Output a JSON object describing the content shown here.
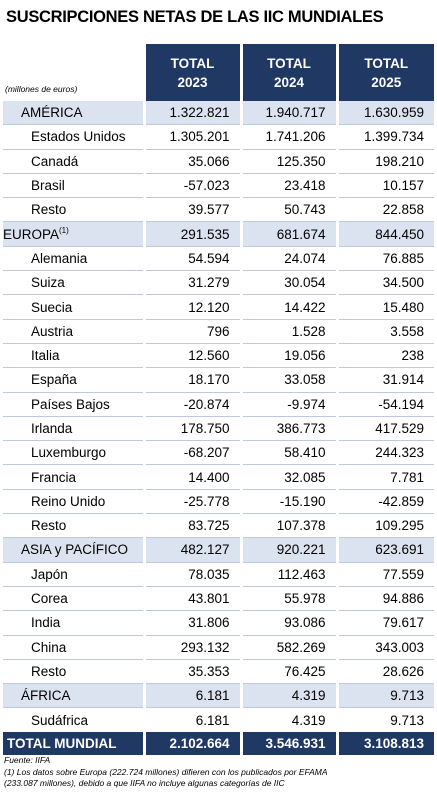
{
  "title": "SUSCRIPCIONES NETAS DE LAS IIC MUNDIALES",
  "units": "(millones de euros)",
  "columns": [
    {
      "top": "TOTAL",
      "year": "2023"
    },
    {
      "top": "TOTAL",
      "year": "2024"
    },
    {
      "top": "TOTAL",
      "year": "2025"
    }
  ],
  "rows": {
    "america": {
      "label": "AMÉRICA",
      "v": [
        "1.322.821",
        "1.940.717",
        "1.630.959"
      ]
    },
    "estados_unidos": {
      "label": "Estados Unidos",
      "v": [
        "1.305.201",
        "1.741.206",
        "1.399.734"
      ]
    },
    "canada": {
      "label": "Canadá",
      "v": [
        "35.066",
        "125.350",
        "198.210"
      ]
    },
    "brasil": {
      "label": "Brasil",
      "v": [
        "-57.023",
        "23.418",
        "10.157"
      ]
    },
    "resto_america": {
      "label": "Resto",
      "v": [
        "39.577",
        "50.743",
        "22.858"
      ]
    },
    "europa": {
      "label": "EUROPA",
      "sup": "(1)",
      "v": [
        "291.535",
        "681.674",
        "844.450"
      ]
    },
    "alemania": {
      "label": "Alemania",
      "v": [
        "54.594",
        "24.074",
        "76.885"
      ]
    },
    "suiza": {
      "label": "Suiza",
      "v": [
        "31.279",
        "30.054",
        "34.500"
      ]
    },
    "suecia": {
      "label": "Suecia",
      "v": [
        "12.120",
        "14.422",
        "15.480"
      ]
    },
    "austria": {
      "label": "Austria",
      "v": [
        "796",
        "1.528",
        "3.558"
      ]
    },
    "italia": {
      "label": "Italia",
      "v": [
        "12.560",
        "19.056",
        "238"
      ]
    },
    "espana": {
      "label": "España",
      "v": [
        "18.170",
        "33.058",
        "31.914"
      ]
    },
    "paises_bajos": {
      "label": "Países Bajos",
      "v": [
        "-20.874",
        "-9.974",
        "-54.194"
      ]
    },
    "irlanda": {
      "label": "Irlanda",
      "v": [
        "178.750",
        "386.773",
        "417.529"
      ]
    },
    "luxemburgo": {
      "label": "Luxemburgo",
      "v": [
        "-68.207",
        "58.410",
        "244.323"
      ]
    },
    "francia": {
      "label": "Francia",
      "v": [
        "14.400",
        "32.085",
        "7.781"
      ]
    },
    "reino_unido": {
      "label": "Reino Unido",
      "v": [
        "-25.778",
        "-15.190",
        "-42.859"
      ]
    },
    "resto_europa": {
      "label": "Resto",
      "v": [
        "83.725",
        "107.378",
        "109.295"
      ]
    },
    "asia": {
      "label": "ASIA y PACÍFICO",
      "v": [
        "482.127",
        "920.221",
        "623.691"
      ]
    },
    "japon": {
      "label": "Japón",
      "v": [
        "78.035",
        "112.463",
        "77.559"
      ]
    },
    "corea": {
      "label": "Corea",
      "v": [
        "43.801",
        "55.978",
        "94.886"
      ]
    },
    "india": {
      "label": "India",
      "v": [
        "31.806",
        "93.086",
        "79.617"
      ]
    },
    "china": {
      "label": "China",
      "v": [
        "293.132",
        "582.269",
        "343.003"
      ]
    },
    "resto_asia": {
      "label": "Resto",
      "v": [
        "35.353",
        "76.425",
        "28.626"
      ]
    },
    "africa": {
      "label": "ÁFRICA",
      "v": [
        "6.181",
        "4.319",
        "9.713"
      ]
    },
    "sudafrica": {
      "label": "Sudáfrica",
      "v": [
        "6.181",
        "4.319",
        "9.713"
      ]
    },
    "total": {
      "label": "TOTAL MUNDIAL",
      "v": [
        "2.102.664",
        "3.546.931",
        "3.108.813"
      ]
    }
  },
  "footer": {
    "source": "Fuente: IIFA",
    "note_line1": "(1) Los datos sobre Europa (222.724 millones) difieren con los publicados por EFAMA",
    "note_line2": "(233.087 millones), debido a que IIFA no incluye algunas categorías de IIC"
  }
}
